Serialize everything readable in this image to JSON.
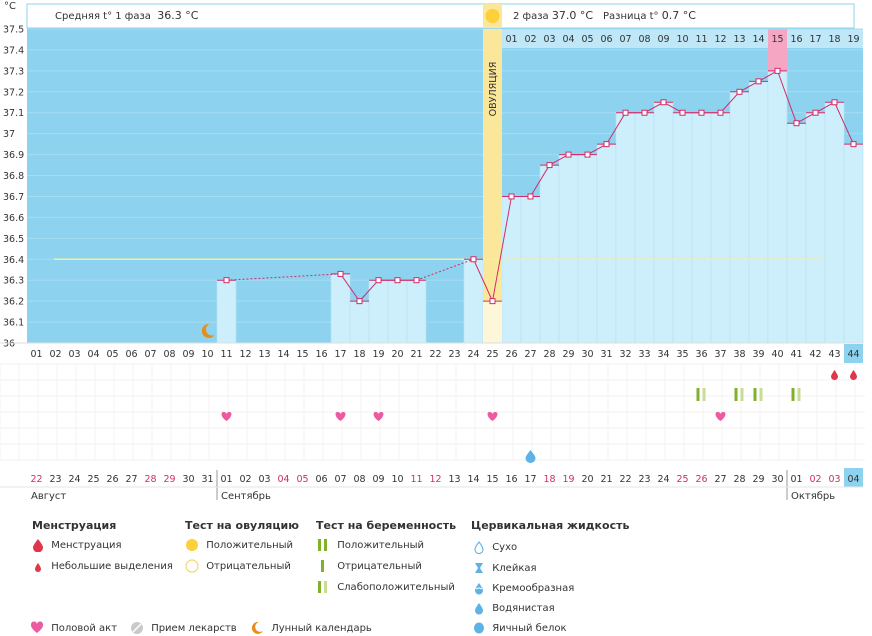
{
  "chart_data": {
    "type": "line",
    "unit_label": "°C",
    "ylim": [
      36.0,
      37.5
    ],
    "yticks": [
      "37.5",
      "37.4",
      "37.3",
      "37.2",
      "37.1",
      "37",
      "36.9",
      "36.8",
      "36.7",
      "36.6",
      "36.5",
      "36.4",
      "36.3",
      "36.2",
      "36.1",
      "36"
    ],
    "cycle_days": [
      "01",
      "02",
      "03",
      "04",
      "05",
      "06",
      "07",
      "08",
      "09",
      "10",
      "11",
      "12",
      "13",
      "14",
      "15",
      "16",
      "17",
      "18",
      "19",
      "20",
      "21",
      "22",
      "23",
      "24",
      "25",
      "26",
      "27",
      "28",
      "29",
      "30",
      "31",
      "32",
      "33",
      "34",
      "35",
      "36",
      "37",
      "38",
      "39",
      "40",
      "41",
      "42",
      "43",
      "44"
    ],
    "temperatures": [
      null,
      null,
      null,
      null,
      null,
      null,
      null,
      null,
      null,
      null,
      36.3,
      null,
      null,
      null,
      null,
      null,
      36.33,
      36.2,
      36.3,
      36.3,
      36.3,
      null,
      null,
      36.4,
      36.2,
      36.7,
      36.7,
      36.85,
      36.9,
      36.9,
      36.95,
      37.1,
      37.1,
      37.15,
      37.1,
      37.1,
      37.1,
      37.2,
      37.25,
      37.3,
      37.05,
      37.1,
      37.15,
      36.95
    ],
    "interpolated_segments": [
      [
        11,
        17
      ],
      [
        21,
        24
      ]
    ],
    "coverline": 36.4,
    "ovulation_day": "25",
    "ovulation_label": "ОВУЛЯЦИЯ",
    "phase1_text": "Средняя t° 1 фаза",
    "phase1_value": "36.3 °C",
    "phase2_text": "2 фаза",
    "phase2_value": "37.0 °C",
    "diff_text": "Разница t°",
    "diff_value": "0.7 °C",
    "phase2_days": [
      "01",
      "02",
      "03",
      "04",
      "05",
      "06",
      "07",
      "08",
      "09",
      "10",
      "11",
      "12",
      "13",
      "14",
      "15",
      "16",
      "17",
      "18",
      "19"
    ],
    "highlight_phase2_day": "15",
    "calendar_dates": [
      "22",
      "23",
      "24",
      "25",
      "26",
      "27",
      "28",
      "29",
      "30",
      "31",
      "01",
      "02",
      "03",
      "04",
      "05",
      "06",
      "07",
      "08",
      "09",
      "10",
      "11",
      "12",
      "13",
      "14",
      "15",
      "16",
      "17",
      "18",
      "19",
      "20",
      "21",
      "22",
      "23",
      "24",
      "25",
      "26",
      "27",
      "28",
      "29",
      "30",
      "01",
      "02",
      "03",
      "04"
    ],
    "red_date_indices": [
      0,
      6,
      7,
      13,
      14,
      20,
      21,
      27,
      28,
      34,
      35,
      41,
      42
    ],
    "months": [
      "Август",
      "Сентябрь",
      "Октябрь"
    ],
    "month_start_indices": [
      0,
      10,
      40
    ],
    "events": {
      "moon_cycle_days": [
        "10"
      ],
      "intercourse_cycle_days": [
        "11",
        "17",
        "19",
        "25",
        "37"
      ],
      "menstruation_cycle_days": [
        "43",
        "44"
      ],
      "pregnancy_positive_days": [
        "36",
        "38",
        "39",
        "41"
      ],
      "pregnancy_weak_days": [
        "36",
        "38",
        "39",
        "41"
      ],
      "fluid_watery_cycle_days": [
        "27"
      ]
    },
    "colors": {
      "bg": "#8dd3ef",
      "bar": "#cdeefb",
      "ovulation": "#fbe79a",
      "line": "#d02c6b",
      "coverline": "#f2efa0",
      "highlight": "#f5a6c2",
      "heart": "#ec5aa0",
      "moon": "#e88c1a",
      "drop_red": "#e0364a",
      "test_green": "#7fb22a",
      "test_light": "#c8dd94",
      "drop_blue": "#5fb2e6"
    }
  },
  "legend": {
    "menstruation": {
      "title": "Менструация",
      "items": [
        "Менструация",
        "Небольшие выделения"
      ]
    },
    "ovulation_test": {
      "title": "Тест на овуляцию",
      "items": [
        "Положительный",
        "Отрицательный"
      ]
    },
    "pregnancy_test": {
      "title": "Тест на беременность",
      "items": [
        "Положительный",
        "Отрицательный",
        "Слабоположительный"
      ]
    },
    "cervical": {
      "title": "Цервикальная жидкость",
      "items": [
        "Сухо",
        "Клейкая",
        "Кремообразная",
        "Водянистая",
        "Яичный белок"
      ]
    },
    "bottom": [
      "Половой акт",
      "Прием лекарств",
      "Лунный календарь"
    ]
  }
}
